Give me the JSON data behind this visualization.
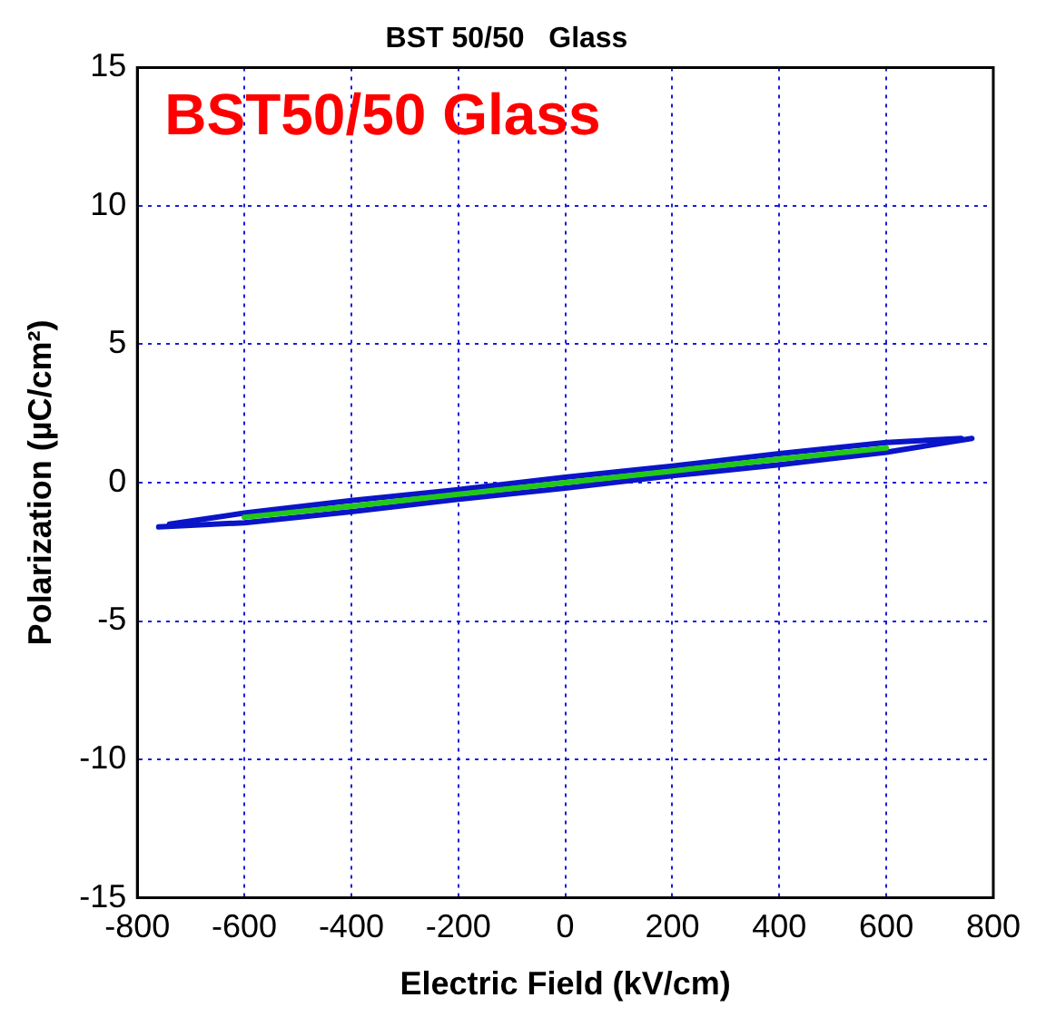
{
  "chart_data": {
    "type": "line",
    "title": "BST 50/50   Glass",
    "xlabel": "Electric Field (kV/cm)",
    "ylabel": "Polarization (µC/cm²)",
    "annotations": [
      "BST50/50 Glass"
    ],
    "series": [
      {
        "color": "#0a14c8",
        "x": [
          -760,
          -600,
          -400,
          -200,
          0,
          200,
          400,
          600,
          760
        ],
        "values": [
          -1.6,
          -1.45,
          -1.05,
          -0.6,
          -0.2,
          0.25,
          0.65,
          1.1,
          1.6
        ]
      },
      {
        "color": "#0a14c8",
        "x": [
          -740,
          -600,
          -400,
          -200,
          0,
          200,
          400,
          600,
          740
        ],
        "values": [
          -1.5,
          -1.1,
          -0.65,
          -0.25,
          0.2,
          0.6,
          1.05,
          1.45,
          1.6
        ]
      },
      {
        "color": "#22c818",
        "x": [
          -600,
          -400,
          -200,
          0,
          200,
          400,
          600
        ],
        "values": [
          -1.25,
          -0.85,
          -0.42,
          0,
          0.42,
          0.85,
          1.25
        ]
      }
    ],
    "xlim": [
      -800,
      800
    ],
    "xticks": [
      -800,
      -600,
      -400,
      -200,
      0,
      200,
      400,
      600,
      800
    ],
    "ylim": [
      -15,
      15
    ],
    "yticks": [
      -15,
      -10,
      -5,
      0,
      5,
      10,
      15
    ],
    "grid": true,
    "legend": false,
    "marker": "none",
    "line_style": "solid"
  }
}
